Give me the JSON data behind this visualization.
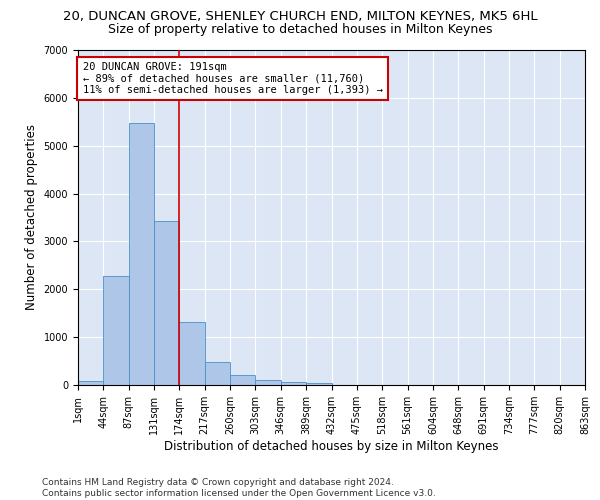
{
  "title": "20, DUNCAN GROVE, SHENLEY CHURCH END, MILTON KEYNES, MK5 6HL",
  "subtitle": "Size of property relative to detached houses in Milton Keynes",
  "xlabel": "Distribution of detached houses by size in Milton Keynes",
  "ylabel": "Number of detached properties",
  "footnote": "Contains HM Land Registry data © Crown copyright and database right 2024.\nContains public sector information licensed under the Open Government Licence v3.0.",
  "bin_labels": [
    "1sqm",
    "44sqm",
    "87sqm",
    "131sqm",
    "174sqm",
    "217sqm",
    "260sqm",
    "303sqm",
    "346sqm",
    "389sqm",
    "432sqm",
    "475sqm",
    "518sqm",
    "561sqm",
    "604sqm",
    "648sqm",
    "691sqm",
    "734sqm",
    "777sqm",
    "820sqm",
    "863sqm"
  ],
  "bar_values": [
    80,
    2280,
    5480,
    3420,
    1310,
    490,
    200,
    100,
    70,
    50,
    0,
    0,
    0,
    0,
    0,
    0,
    0,
    0,
    0,
    0
  ],
  "bar_color": "#aec6e8",
  "bar_edge_color": "#4a90c8",
  "vline_x": 4,
  "vline_color": "#cc0000",
  "annotation_text": "20 DUNCAN GROVE: 191sqm\n← 89% of detached houses are smaller (11,760)\n11% of semi-detached houses are larger (1,393) →",
  "annotation_box_color": "#cc0000",
  "ylim": [
    0,
    7000
  ],
  "background_color": "#dce6f5",
  "grid_color": "#ffffff",
  "title_fontsize": 9.5,
  "subtitle_fontsize": 9,
  "label_fontsize": 8.5,
  "tick_fontsize": 7,
  "footnote_fontsize": 6.5,
  "annotation_fontsize": 7.5
}
